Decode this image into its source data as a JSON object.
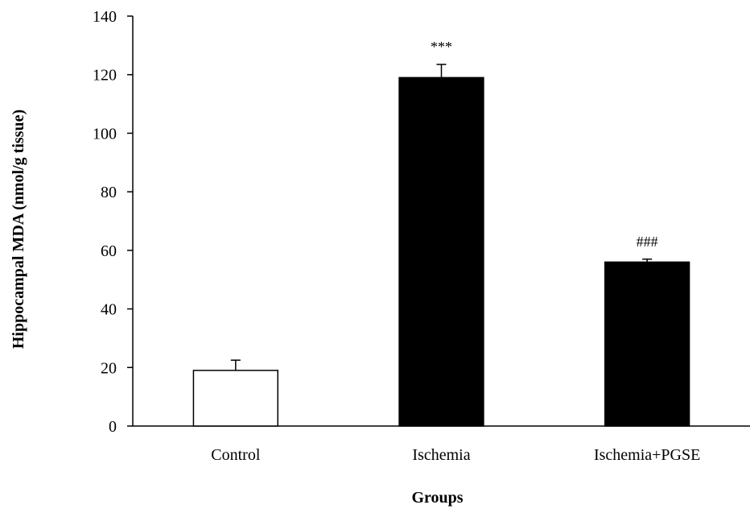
{
  "chart_data": {
    "type": "bar",
    "title": "",
    "xlabel": "Groups",
    "ylabel": "Hippocampal MDA (nmol/g tissue)",
    "ylim": [
      0,
      140
    ],
    "yticks": [
      0,
      20,
      40,
      60,
      80,
      100,
      120,
      140
    ],
    "ytick_labels": [
      "0",
      "20",
      "40",
      "60",
      "80",
      "100",
      "120",
      "140"
    ],
    "grid": false,
    "legend": "none",
    "categories": [
      "Control",
      "Ischemia",
      "Ischemia+PGSE"
    ],
    "values": [
      19,
      119,
      56
    ],
    "errors": [
      3.5,
      4.5,
      1.0
    ],
    "bar_colors": [
      "#ffffff",
      "#000000",
      "#000000"
    ],
    "bar_edge_color": "#000000",
    "annotations": [
      "",
      "***",
      "###"
    ]
  }
}
